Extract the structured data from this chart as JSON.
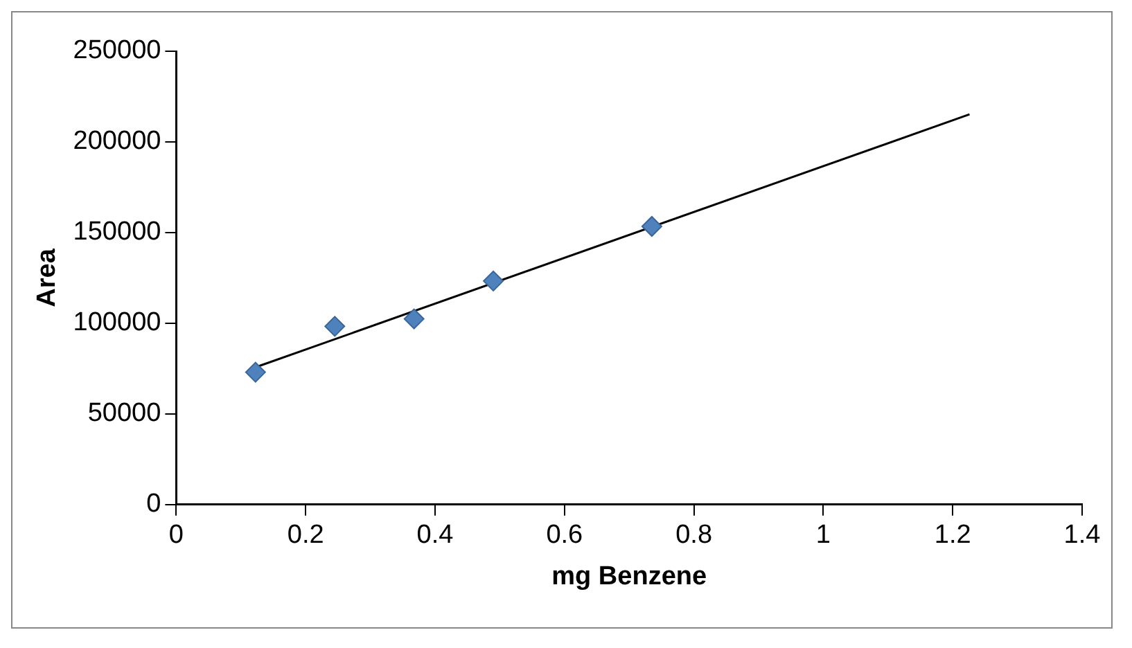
{
  "chart_data": {
    "type": "scatter",
    "xlabel": "mg Benzene",
    "ylabel": "Area",
    "grid": false,
    "legend": false,
    "xlim": [
      0,
      1.4
    ],
    "xticks": [
      0,
      0.2,
      0.4,
      0.6,
      0.8,
      1,
      1.2,
      1.4
    ],
    "ylim": [
      0,
      250000
    ],
    "yticks": [
      0,
      50000,
      100000,
      150000,
      200000,
      250000
    ],
    "series": [
      {
        "marker": "diamond",
        "color": "#4f81bd",
        "x": [
          0.1225,
          0.245,
          0.3675,
          0.49,
          0.735
        ],
        "values": [
          73000,
          98300,
          102400,
          123300,
          153400
        ]
      },
      {
        "type": "line",
        "marker": "none",
        "color": "#000000",
        "x": [
          0.1225,
          1.226
        ],
        "values": [
          75700,
          215200
        ]
      }
    ]
  }
}
